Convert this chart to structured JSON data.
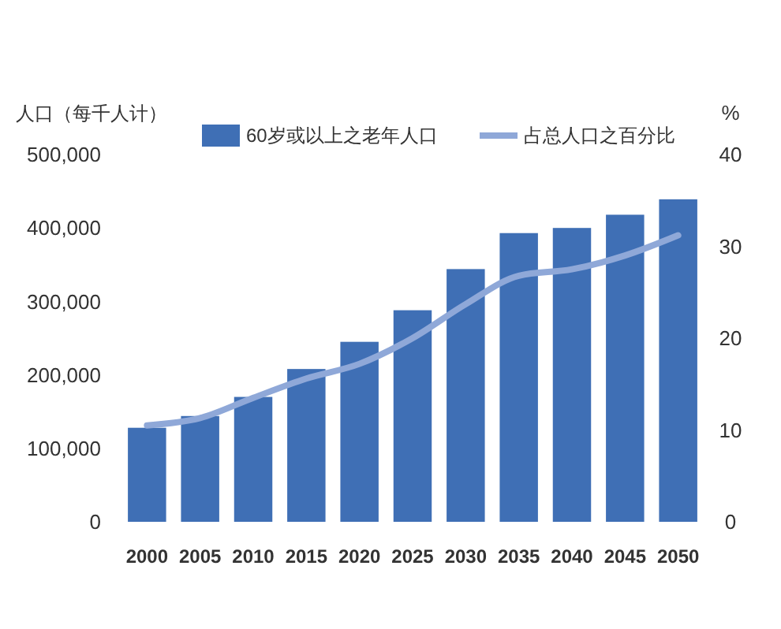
{
  "chart_data": {
    "type": "bar",
    "ylabel": "人口（每千人计）",
    "y2label": "%",
    "categories": [
      "2000",
      "2005",
      "2010",
      "2015",
      "2020",
      "2025",
      "2030",
      "2035",
      "2040",
      "2045",
      "2050"
    ],
    "series": [
      {
        "name": "60岁或以上之老年人口",
        "color": "#3f6fb5",
        "values": [
          128000,
          144000,
          170000,
          208000,
          245000,
          288000,
          344000,
          393000,
          400000,
          418000,
          439000
        ]
      },
      {
        "name": "占总人口之百分比",
        "type": "line",
        "axis": "y2",
        "color": "#8fa8d8",
        "values": [
          10.5,
          11.3,
          13.5,
          15.6,
          17.2,
          20,
          23.7,
          26.8,
          27.5,
          29,
          31.2
        ]
      }
    ],
    "ylim": [
      0,
      500000
    ],
    "yticks": [
      {
        "value": 0,
        "label": "0"
      },
      {
        "value": 100000,
        "label": "100,000"
      },
      {
        "value": 200000,
        "label": "200,000"
      },
      {
        "value": 300000,
        "label": "300,000"
      },
      {
        "value": 400000,
        "label": "400,000"
      },
      {
        "value": 500000,
        "label": "500,000"
      }
    ],
    "y2lim": [
      0,
      40
    ],
    "y2ticks": [
      0,
      10,
      20,
      30,
      40
    ],
    "legend": "top",
    "grid": false
  }
}
